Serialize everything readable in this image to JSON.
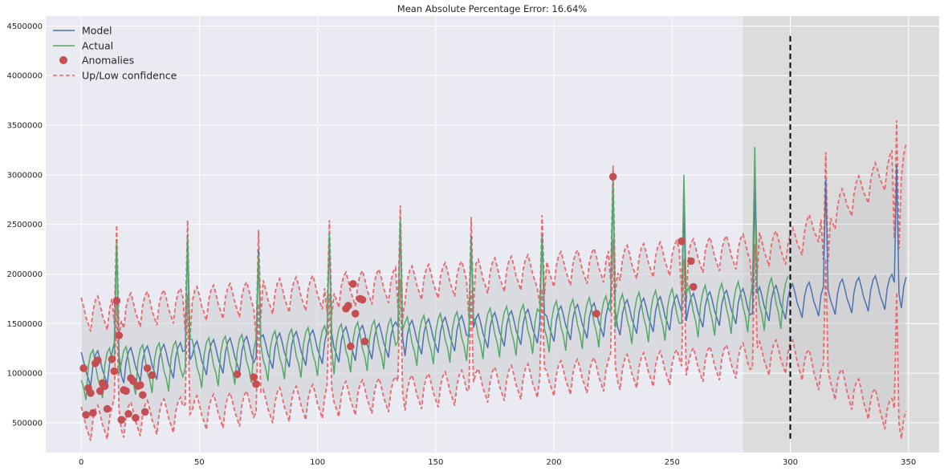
{
  "chart_data": {
    "type": "line",
    "title": "Mean Absolute Percentage Error: 16.64%",
    "xlabel": "",
    "ylabel": "",
    "xlim": [
      -15,
      363
    ],
    "ylim": [
      200000,
      4600000
    ],
    "x_ticks": [
      0,
      50,
      100,
      150,
      200,
      250,
      300,
      350
    ],
    "y_ticks": [
      500000,
      1000000,
      1500000,
      2000000,
      2500000,
      3000000,
      3500000,
      4000000,
      4500000
    ],
    "grid": true,
    "legend_position": "top-left",
    "legend": [
      {
        "label": "Model",
        "style": "line",
        "color": "#4c72b0"
      },
      {
        "label": "Actual",
        "style": "line",
        "color": "#55a868"
      },
      {
        "label": "Anomalies",
        "style": "marker",
        "color": "#c44e52"
      },
      {
        "label": "Up/Low confidence",
        "style": "dashed",
        "color": "#e8686b"
      }
    ],
    "model_series": {
      "name": "Model",
      "x_start": 0,
      "x_end": 349,
      "period": 30,
      "peak_offset": 15,
      "base_start": 1050000,
      "base_end": 1850000,
      "weekly_amplitude": 200000,
      "peak_values": [
        {
          "x": 15,
          "y": 2300000
        },
        {
          "x": 45,
          "y": 2350000
        },
        {
          "x": 75,
          "y": 2250000
        },
        {
          "x": 105,
          "y": 2350000
        },
        {
          "x": 135,
          "y": 2500000
        },
        {
          "x": 165,
          "y": 2380000
        },
        {
          "x": 195,
          "y": 2400000
        },
        {
          "x": 225,
          "y": 2900000
        },
        {
          "x": 255,
          "y": 2700000
        },
        {
          "x": 285,
          "y": 2850000
        },
        {
          "x": 315,
          "y": 2950000
        },
        {
          "x": 345,
          "y": 3100000
        }
      ]
    },
    "actual_series": {
      "name": "Actual",
      "x_start": 0,
      "x_end": 299,
      "base_start": 1000000,
      "base_end": 1750000,
      "weekly_amplitude": 350000,
      "peak_values": [
        {
          "x": 15,
          "y": 2350000
        },
        {
          "x": 45,
          "y": 2400000
        },
        {
          "x": 75,
          "y": 2200000
        },
        {
          "x": 105,
          "y": 2400000
        },
        {
          "x": 135,
          "y": 2550000
        },
        {
          "x": 165,
          "y": 2350000
        },
        {
          "x": 195,
          "y": 2400000
        },
        {
          "x": 225,
          "y": 2980000
        },
        {
          "x": 255,
          "y": 3000000
        },
        {
          "x": 285,
          "y": 3280000
        }
      ]
    },
    "confidence_half_width": 550000,
    "confidence_half_width_forecast_end": 1350000,
    "anomalies": [
      {
        "x": 1,
        "y": 1050000
      },
      {
        "x": 2,
        "y": 580000
      },
      {
        "x": 3,
        "y": 850000
      },
      {
        "x": 4,
        "y": 800000
      },
      {
        "x": 5,
        "y": 600000
      },
      {
        "x": 6,
        "y": 1100000
      },
      {
        "x": 7,
        "y": 1130000
      },
      {
        "x": 8,
        "y": 820000
      },
      {
        "x": 9,
        "y": 900000
      },
      {
        "x": 10,
        "y": 870000
      },
      {
        "x": 11,
        "y": 640000
      },
      {
        "x": 13,
        "y": 1140000
      },
      {
        "x": 14,
        "y": 1020000
      },
      {
        "x": 15,
        "y": 1730000
      },
      {
        "x": 16,
        "y": 1380000
      },
      {
        "x": 17,
        "y": 530000
      },
      {
        "x": 18,
        "y": 830000
      },
      {
        "x": 19,
        "y": 820000
      },
      {
        "x": 20,
        "y": 590000
      },
      {
        "x": 21,
        "y": 950000
      },
      {
        "x": 22,
        "y": 920000
      },
      {
        "x": 23,
        "y": 550000
      },
      {
        "x": 24,
        "y": 870000
      },
      {
        "x": 25,
        "y": 880000
      },
      {
        "x": 26,
        "y": 780000
      },
      {
        "x": 27,
        "y": 610000
      },
      {
        "x": 28,
        "y": 1050000
      },
      {
        "x": 30,
        "y": 980000
      },
      {
        "x": 66,
        "y": 990000
      },
      {
        "x": 73,
        "y": 960000
      },
      {
        "x": 74,
        "y": 890000
      },
      {
        "x": 112,
        "y": 1650000
      },
      {
        "x": 113,
        "y": 1680000
      },
      {
        "x": 114,
        "y": 1270000
      },
      {
        "x": 115,
        "y": 1900000
      },
      {
        "x": 116,
        "y": 1600000
      },
      {
        "x": 118,
        "y": 1750000
      },
      {
        "x": 119,
        "y": 1740000
      },
      {
        "x": 120,
        "y": 1320000
      },
      {
        "x": 218,
        "y": 1600000
      },
      {
        "x": 225,
        "y": 2980000
      },
      {
        "x": 254,
        "y": 2330000
      },
      {
        "x": 258,
        "y": 2130000
      },
      {
        "x": 259,
        "y": 1870000
      }
    ],
    "forecast_shading": {
      "x_from": 280,
      "x_to": 363,
      "color": "#dcdcdc"
    },
    "forecast_split_line": {
      "x": 300,
      "y_from": 320000,
      "y_to": 4400000,
      "color": "#000000"
    }
  }
}
